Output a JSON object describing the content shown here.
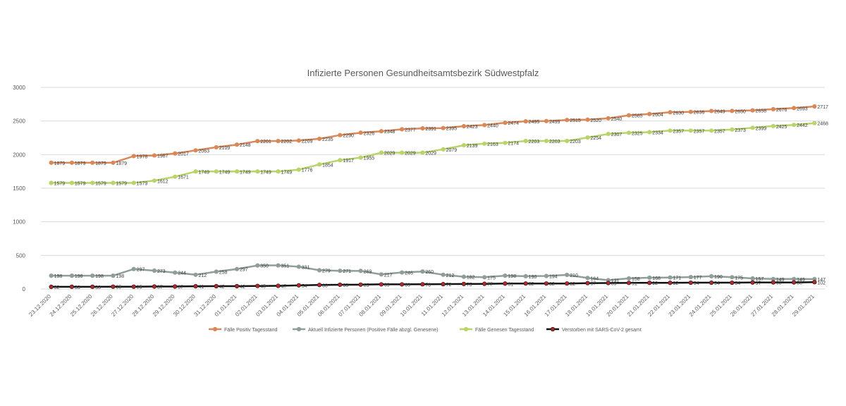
{
  "chart_data": {
    "type": "line",
    "title": "Infizierte Personen Gesundheitsamtsbezirk Südwestpfalz",
    "xlabel": "",
    "ylabel": "",
    "ylim": [
      0,
      3000
    ],
    "yticks": [
      0,
      500,
      1000,
      1500,
      2000,
      2500,
      3000
    ],
    "grid": true,
    "legend": "bottom",
    "categories": [
      "23.12.2020",
      "24.12.2020",
      "25.12.2020",
      "26.12.2020",
      "27.12.2020",
      "28.12.2020",
      "29.12.2020",
      "30.12.2020",
      "31.12.2020",
      "01.01.2021",
      "02.01.2021",
      "03.01.2021",
      "04.01.2021",
      "05.01.2021",
      "06.01.2021",
      "07.01.2021",
      "08.01.2021",
      "09.01.2021",
      "10.01.2021",
      "11.01.2021",
      "12.01.2021",
      "13.01.2021",
      "14.01.2021",
      "15.01.2021",
      "16.01.2021",
      "17.01.2021",
      "18.01.2021",
      "19.01.2021",
      "20.01.2021",
      "21.01.2021",
      "22.01.2021",
      "23.01.2021",
      "24.01.2021",
      "25.01.2021",
      "26.01.2021",
      "27.01.2021",
      "28.01.2021",
      "29.01.2021"
    ],
    "series": [
      {
        "name": "Fälle Positiv Tagesstand",
        "color": "#d9885a",
        "values": [
          1879,
          1879,
          1879,
          1879,
          1978,
          1987,
          2017,
          2063,
          2109,
          2148,
          2201,
          2202,
          2209,
          2235,
          2290,
          2326,
          2348,
          2377,
          2391,
          2395,
          2423,
          2440,
          2474,
          2495,
          2499,
          2515,
          2520,
          2540,
          2585,
          2604,
          2630,
          2636,
          2649,
          2650,
          2658,
          2676,
          2693,
          2717
        ]
      },
      {
        "name": "Aktuell Infizierte Personen (Positive Fälle abzgl. Genesene)",
        "color": "#8f9e98",
        "values": [
          198,
          198,
          198,
          198,
          297,
          273,
          244,
          212,
          258,
          297,
          350,
          351,
          331,
          279,
          271,
          269,
          217,
          246,
          260,
          212,
          182,
          175,
          198,
          190,
          194,
          210,
          164,
          131,
          158,
          168,
          171,
          177,
          190,
          175,
          157,
          149,
          149,
          147
        ]
      },
      {
        "name": "Fälle Genesen Tagesstand",
        "color": "#b8d46a",
        "values": [
          1579,
          1579,
          1579,
          1579,
          1579,
          1612,
          1671,
          1749,
          1749,
          1749,
          1749,
          1749,
          1776,
          1854,
          1917,
          1955,
          2029,
          2029,
          2029,
          2079,
          2139,
          2163,
          2174,
          2203,
          2203,
          2203,
          2254,
          2307,
          2325,
          2334,
          2357,
          2357,
          2357,
          2373,
          2399,
          2425,
          2442,
          2468
        ]
      },
      {
        "name": "Verstorben mit SARS-CoV-2 gesamt",
        "color": "#111111",
        "marker_color": "#b3282c",
        "values": [
          32,
          33,
          33,
          35,
          35,
          37,
          37,
          41,
          42,
          42,
          45,
          47,
          54,
          60,
          63,
          65,
          69,
          69,
          70,
          72,
          75,
          77,
          81,
          82,
          82,
          82,
          87,
          89,
          91,
          92,
          92,
          94,
          94,
          94,
          97,
          98,
          98,
          102
        ]
      }
    ]
  }
}
